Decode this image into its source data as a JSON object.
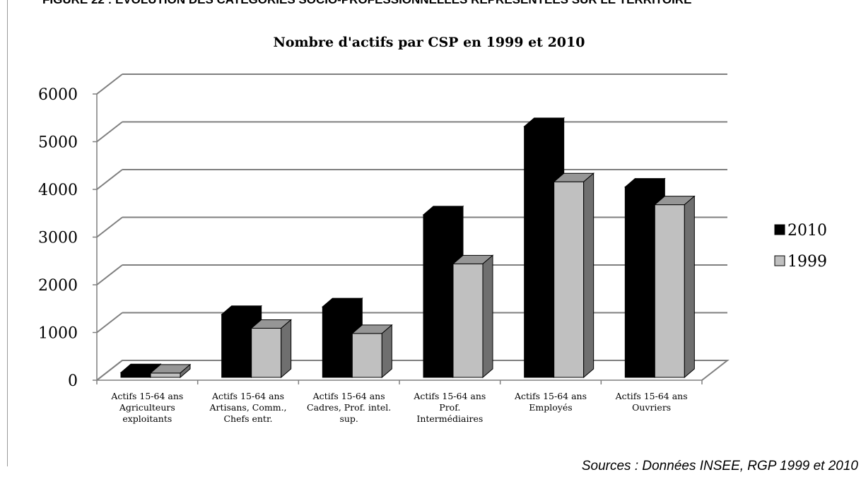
{
  "figure_caption": "FIGURE 22 : ÉVOLUTION DES CATÉGORIES SOCIO-PROFESSIONNELLES REPRÉSENTÉES SUR LE TERRITOIRE",
  "sources": "Sources : Données INSEE, RGP 1999 et 2010",
  "colors": {
    "series_2010": "#000000",
    "series_1999": "#c0c0c0",
    "grid": "#7f7f7f"
  },
  "chart_data": {
    "type": "bar",
    "title": "Nombre d'actifs par CSP en 1999 et 2010",
    "xlabel": "",
    "ylabel": "",
    "ylim": [
      0,
      6000
    ],
    "yticks": [
      "0",
      "1000",
      "2000",
      "3000",
      "4000",
      "5000",
      "6000"
    ],
    "categories": [
      [
        "Actifs 15-64 ans",
        "Agriculteurs",
        "exploitants"
      ],
      [
        "Actifs 15-64 ans",
        "Artisans, Comm.,",
        "Chefs entr."
      ],
      [
        "Actifs 15-64 ans",
        "Cadres, Prof. intel.",
        "sup."
      ],
      [
        "Actifs 15-64 ans",
        "Prof.",
        "Intermédiaires"
      ],
      [
        "Actifs 15-64 ans",
        "Employés"
      ],
      [
        "Actifs 15-64 ans",
        "Ouvriers"
      ]
    ],
    "series": [
      {
        "name": "2010",
        "values": [
          100,
          1320,
          1480,
          3410,
          5260,
          3990
        ]
      },
      {
        "name": "1999",
        "values": [
          90,
          1030,
          920,
          2380,
          4100,
          3620
        ]
      }
    ],
    "grid": true,
    "style": "3d-clustered-column",
    "legend": "right"
  }
}
